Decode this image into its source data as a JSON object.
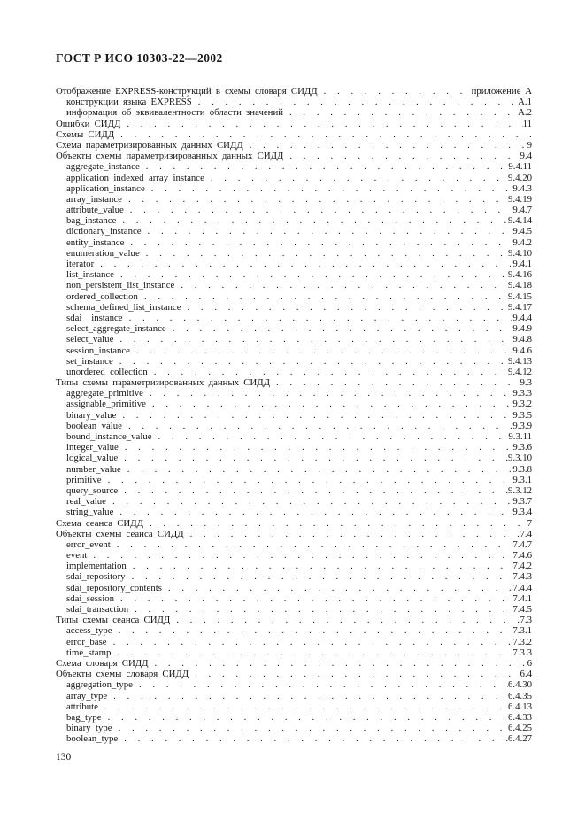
{
  "page": {
    "header": "ГОСТ Р ИСО 10303-22—2002",
    "footer_page_number": "130"
  },
  "toc": {
    "entries": [
      {
        "label": "Отображение EXPRESS-конструкций в схемы словаря СИДД",
        "ref": "приложение А",
        "indent": 0
      },
      {
        "label": "конструкции языка EXPRESS",
        "ref": "А.1",
        "indent": 1
      },
      {
        "label": "информация об эквивалентности области значений",
        "ref": "А.2",
        "indent": 1
      },
      {
        "label": "Ошибки СИДД",
        "ref": "11",
        "indent": 0
      },
      {
        "label": "Схемы СИДД",
        "ref": "",
        "indent": 0
      },
      {
        "label": "Схема параметризированных данных СИДД",
        "ref": "9",
        "indent": 0
      },
      {
        "label": "Объекты схемы параметризированных данных СИДД",
        "ref": "9.4",
        "indent": 0
      },
      {
        "label": "aggregate_instance",
        "ref": "9.4.11",
        "indent": 1
      },
      {
        "label": "application_indexed_array_instance",
        "ref": "9.4.20",
        "indent": 1
      },
      {
        "label": "application_instance",
        "ref": "9.4.3",
        "indent": 1
      },
      {
        "label": "array_instance",
        "ref": "9.4.19",
        "indent": 1
      },
      {
        "label": "attribute_value",
        "ref": "9.4.7",
        "indent": 1
      },
      {
        "label": "bag_instance",
        "ref": "9.4.14",
        "indent": 1
      },
      {
        "label": "dictionary_instance",
        "ref": "9.4.5",
        "indent": 1
      },
      {
        "label": "entity_instance",
        "ref": "9.4.2",
        "indent": 1
      },
      {
        "label": "enumeration_value",
        "ref": "9.4.10",
        "indent": 1
      },
      {
        "label": "iterator",
        "ref": "9.4.1",
        "indent": 1
      },
      {
        "label": "list_instance",
        "ref": "9.4.16",
        "indent": 1
      },
      {
        "label": "non_persistent_list_instance",
        "ref": "9.4.18",
        "indent": 1
      },
      {
        "label": "ordered_collection",
        "ref": "9.4.15",
        "indent": 1
      },
      {
        "label": "schema_defined_list_instance",
        "ref": "9.4.17",
        "indent": 1
      },
      {
        "label": "sdai__instance",
        "ref": "9.4.4",
        "indent": 1
      },
      {
        "label": "select_aggregate_instance",
        "ref": "9.4.9",
        "indent": 1
      },
      {
        "label": "select_value",
        "ref": "9.4.8",
        "indent": 1
      },
      {
        "label": "session_instance",
        "ref": "9.4.6",
        "indent": 1
      },
      {
        "label": "set_instance",
        "ref": "9.4.13",
        "indent": 1
      },
      {
        "label": "unordered_collection",
        "ref": "9.4.12",
        "indent": 1
      },
      {
        "label": "Типы схемы параметризированных данных СИДД",
        "ref": "9.3",
        "indent": 0
      },
      {
        "label": "aggregate_primitive",
        "ref": "9.3.3",
        "indent": 1
      },
      {
        "label": "assignable_primitive",
        "ref": "9.3.2",
        "indent": 1
      },
      {
        "label": "binary_value",
        "ref": "9.3.5",
        "indent": 1
      },
      {
        "label": "boolean_value",
        "ref": "9.3.9",
        "indent": 1
      },
      {
        "label": "bound_instance_value",
        "ref": "9.3.11",
        "indent": 1
      },
      {
        "label": "integer_value",
        "ref": "9.3.6",
        "indent": 1
      },
      {
        "label": "logical_value",
        "ref": "9.3.10",
        "indent": 1
      },
      {
        "label": "number_value",
        "ref": "9.3.8",
        "indent": 1
      },
      {
        "label": "primitive",
        "ref": "9.3.1",
        "indent": 1
      },
      {
        "label": "query_source",
        "ref": "9.3.12",
        "indent": 1
      },
      {
        "label": "real_value",
        "ref": "9.3.7",
        "indent": 1
      },
      {
        "label": "string_value",
        "ref": "9.3.4",
        "indent": 1
      },
      {
        "label": "Схема сеанса СИДД",
        "ref": "7",
        "indent": 0
      },
      {
        "label": "Объекты схемы сеанса СИДД",
        "ref": "7.4",
        "indent": 0
      },
      {
        "label": "error_event",
        "ref": "7.4.7",
        "indent": 1
      },
      {
        "label": "event",
        "ref": "7.4.6",
        "indent": 1
      },
      {
        "label": "implementation",
        "ref": "7.4.2",
        "indent": 1
      },
      {
        "label": "sdai_repository",
        "ref": "7.4.3",
        "indent": 1
      },
      {
        "label": "sdai_repository_contents",
        "ref": "7.4.4",
        "indent": 1
      },
      {
        "label": "sdai_session",
        "ref": "7.4.1",
        "indent": 1
      },
      {
        "label": "sdai_transaction",
        "ref": "7.4.5",
        "indent": 1
      },
      {
        "label": "Типы схемы сеанса СИДД",
        "ref": "7.3",
        "indent": 0
      },
      {
        "label": "access_type",
        "ref": "7.3.1",
        "indent": 1
      },
      {
        "label": "error_base",
        "ref": "7.3.2",
        "indent": 1
      },
      {
        "label": "time_stamp",
        "ref": "7.3.3",
        "indent": 1
      },
      {
        "label": "Схема словаря СИДД",
        "ref": "6",
        "indent": 0
      },
      {
        "label": "Объекты схемы словаря СИДД",
        "ref": "6.4",
        "indent": 0
      },
      {
        "label": "aggregation_type",
        "ref": "6.4.30",
        "indent": 1
      },
      {
        "label": "array_type",
        "ref": "6.4.35",
        "indent": 1
      },
      {
        "label": "attribute",
        "ref": "6.4.13",
        "indent": 1
      },
      {
        "label": "bag_type",
        "ref": "6.4.33",
        "indent": 1
      },
      {
        "label": "binary_type",
        "ref": "6.4.25",
        "indent": 1
      },
      {
        "label": "boolean_type",
        "ref": "6.4.27",
        "indent": 1
      }
    ]
  }
}
